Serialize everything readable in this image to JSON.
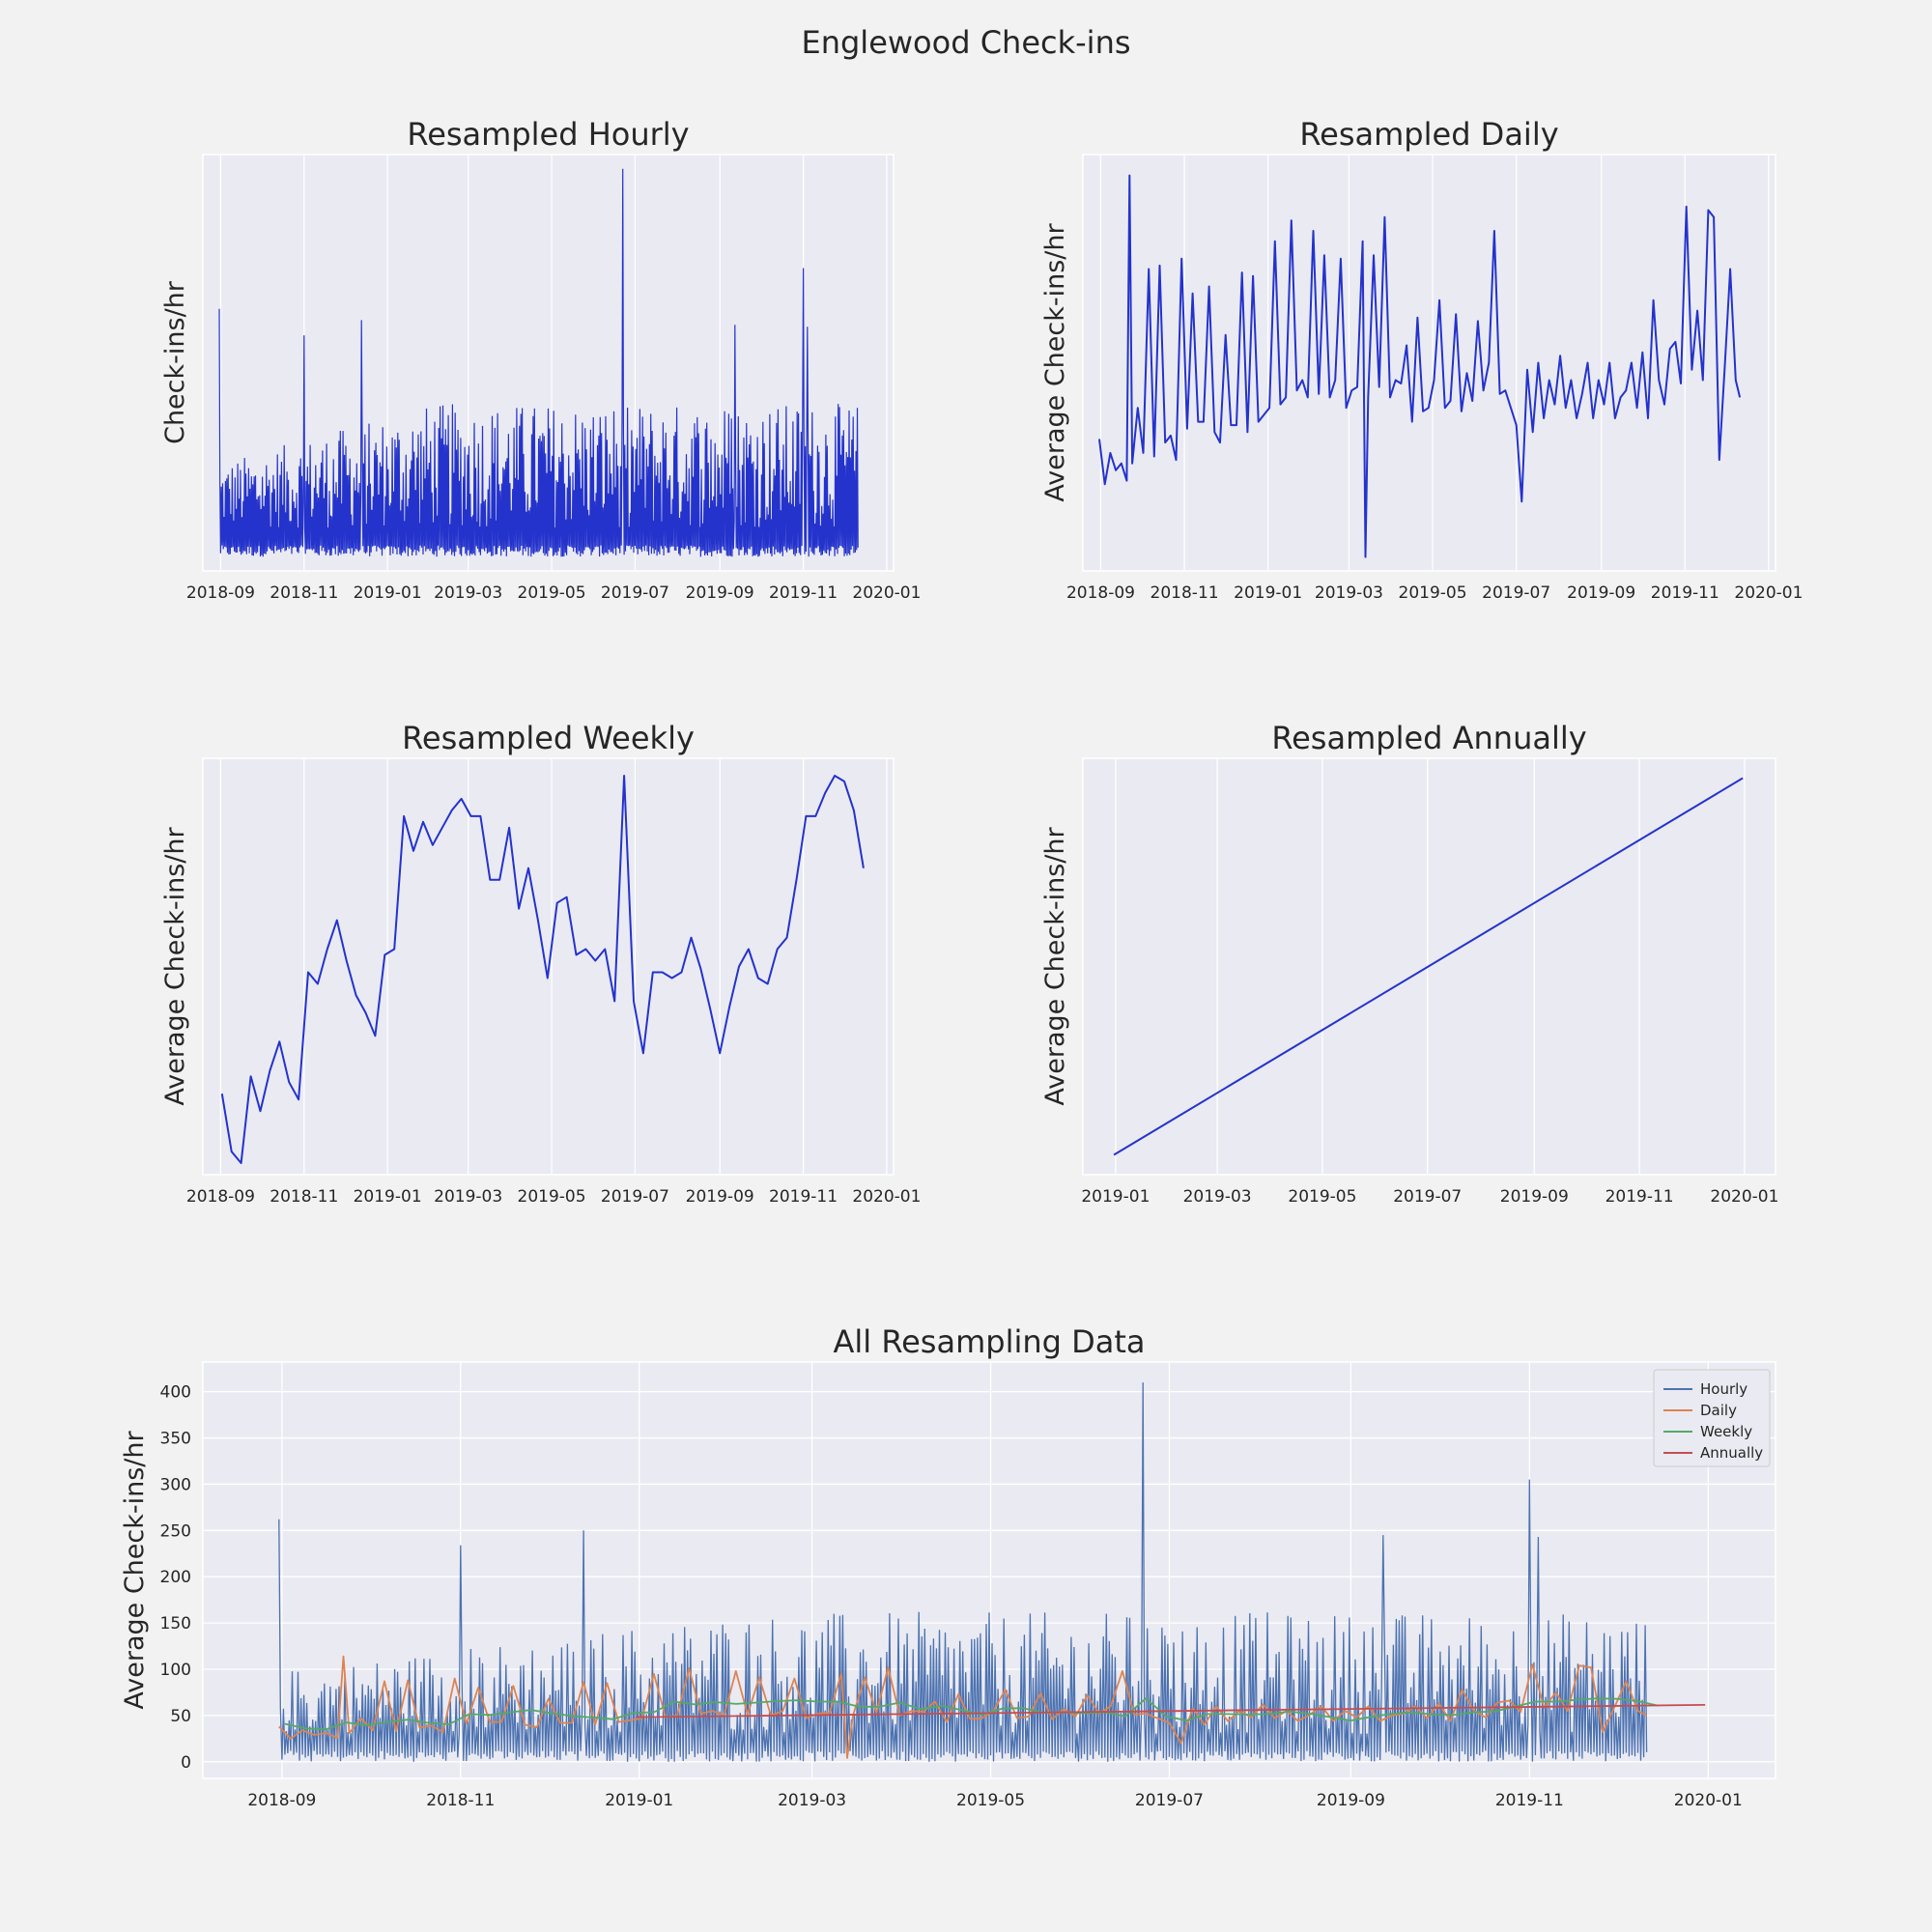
{
  "figure": {
    "suptitle": "Englewood Check-ins",
    "background": "#f2f2f2",
    "axes_face": "#eaeaf2",
    "grid_color": "#ffffff",
    "text_color": "#262626"
  },
  "chart_data": [
    {
      "type": "line",
      "title": "Resampled Hourly",
      "xlabel": "",
      "ylabel": "Check-ins/hr",
      "x_ticks": [
        "2018-09",
        "2018-11",
        "2019-01",
        "2019-03",
        "2019-05",
        "2019-07",
        "2019-09",
        "2019-11",
        "2020-01"
      ],
      "y_ticks": [],
      "grid": true,
      "xlim": [
        "2018-08-19",
        "2020-01-06"
      ],
      "ylim": [
        -15,
        425
      ],
      "series": [
        {
          "color": "#2433cc",
          "x_start": "2018-08-31",
          "x_end": "2019-12-11",
          "frequency": "hourly",
          "baseline": 0,
          "typical_range": [
            0,
            180
          ],
          "peaks": [
            {
              "x": "2018-08-31",
              "y": 262
            },
            {
              "x": "2018-11-01",
              "y": 234
            },
            {
              "x": "2018-12-13",
              "y": 250
            },
            {
              "x": "2019-06-22",
              "y": 410
            },
            {
              "x": "2019-09-12",
              "y": 245
            },
            {
              "x": "2019-11-01",
              "y": 305
            },
            {
              "x": "2019-11-04",
              "y": 243
            }
          ]
        }
      ]
    },
    {
      "type": "line",
      "title": "Resampled Daily",
      "xlabel": "",
      "ylabel": "Average Check-ins/hr",
      "x_ticks": [
        "2018-09",
        "2018-11",
        "2019-01",
        "2019-03",
        "2019-05",
        "2019-07",
        "2019-09",
        "2019-11",
        "2020-01"
      ],
      "y_ticks": [],
      "grid": true,
      "xlim": [
        "2018-08-19",
        "2020-01-06"
      ],
      "ylim": [
        0,
        120
      ],
      "series": [
        {
          "color": "#2433cc",
          "x": [
            "2018-08-31",
            "2018-09-04",
            "2018-09-08",
            "2018-09-12",
            "2018-09-16",
            "2018-09-20",
            "2018-09-22",
            "2018-09-24",
            "2018-09-28",
            "2018-10-02",
            "2018-10-06",
            "2018-10-10",
            "2018-10-14",
            "2018-10-18",
            "2018-10-22",
            "2018-10-26",
            "2018-10-30",
            "2018-11-03",
            "2018-11-07",
            "2018-11-11",
            "2018-11-15",
            "2018-11-19",
            "2018-11-23",
            "2018-11-27",
            "2018-12-01",
            "2018-12-05",
            "2018-12-09",
            "2018-12-13",
            "2018-12-17",
            "2018-12-21",
            "2018-12-25",
            "2018-12-29",
            "2019-01-02",
            "2019-01-06",
            "2019-01-10",
            "2019-01-14",
            "2019-01-18",
            "2019-01-22",
            "2019-01-26",
            "2019-01-30",
            "2019-02-03",
            "2019-02-07",
            "2019-02-11",
            "2019-02-15",
            "2019-02-19",
            "2019-02-23",
            "2019-02-27",
            "2019-03-03",
            "2019-03-07",
            "2019-03-11",
            "2019-03-13",
            "2019-03-15",
            "2019-03-19",
            "2019-03-23",
            "2019-03-27",
            "2019-03-31",
            "2019-04-04",
            "2019-04-08",
            "2019-04-12",
            "2019-04-16",
            "2019-04-20",
            "2019-04-24",
            "2019-04-28",
            "2019-05-02",
            "2019-05-06",
            "2019-05-10",
            "2019-05-14",
            "2019-05-18",
            "2019-05-22",
            "2019-05-26",
            "2019-05-30",
            "2019-06-03",
            "2019-06-07",
            "2019-06-11",
            "2019-06-15",
            "2019-06-19",
            "2019-06-23",
            "2019-06-27",
            "2019-07-01",
            "2019-07-05",
            "2019-07-09",
            "2019-07-13",
            "2019-07-17",
            "2019-07-21",
            "2019-07-25",
            "2019-07-29",
            "2019-08-02",
            "2019-08-06",
            "2019-08-10",
            "2019-08-14",
            "2019-08-18",
            "2019-08-22",
            "2019-08-26",
            "2019-08-30",
            "2019-09-03",
            "2019-09-07",
            "2019-09-11",
            "2019-09-15",
            "2019-09-19",
            "2019-09-23",
            "2019-09-27",
            "2019-10-01",
            "2019-10-05",
            "2019-10-09",
            "2019-10-13",
            "2019-10-17",
            "2019-10-21",
            "2019-10-25",
            "2019-10-29",
            "2019-11-02",
            "2019-11-06",
            "2019-11-10",
            "2019-11-14",
            "2019-11-18",
            "2019-11-22",
            "2019-11-26",
            "2019-11-30",
            "2019-12-04",
            "2019-12-08",
            "2019-12-11"
          ],
          "values": [
            38,
            25,
            34,
            29,
            31,
            26,
            114,
            31,
            47,
            34,
            87,
            33,
            88,
            37,
            39,
            32,
            90,
            41,
            80,
            43,
            43,
            82,
            40,
            37,
            68,
            42,
            42,
            86,
            40,
            85,
            43,
            45,
            47,
            95,
            48,
            50,
            101,
            52,
            55,
            50,
            98,
            51,
            91,
            50,
            55,
            90,
            47,
            52,
            53,
            95,
            4,
            50,
            91,
            53,
            102,
            50,
            55,
            54,
            65,
            43,
            73,
            46,
            47,
            55,
            78,
            47,
            49,
            74,
            46,
            57,
            49,
            72,
            52,
            60,
            98,
            51,
            52,
            47,
            42,
            20,
            58,
            40,
            60,
            44,
            55,
            48,
            62,
            47,
            55,
            44,
            51,
            60,
            44,
            55,
            48,
            60,
            44,
            50,
            52,
            60,
            47,
            63,
            44,
            78,
            55,
            48,
            64,
            66,
            54,
            105,
            58,
            75,
            55,
            104,
            102,
            32,
            59,
            87,
            55,
            50
          ]
        }
      ]
    },
    {
      "type": "line",
      "title": "Resampled Weekly",
      "xlabel": "",
      "ylabel": "Average Check-ins/hr",
      "x_ticks": [
        "2018-09",
        "2018-11",
        "2019-01",
        "2019-03",
        "2019-05",
        "2019-07",
        "2019-09",
        "2019-11",
        "2020-01"
      ],
      "y_ticks": [],
      "grid": true,
      "xlim": [
        "2018-08-19",
        "2020-01-06"
      ],
      "ylim": [
        34,
        70
      ],
      "series": [
        {
          "color": "#2433cc",
          "x": [
            "2018-09-02",
            "2018-09-09",
            "2018-09-16",
            "2018-09-23",
            "2018-09-30",
            "2018-10-07",
            "2018-10-14",
            "2018-10-21",
            "2018-10-28",
            "2018-11-04",
            "2018-11-11",
            "2018-11-18",
            "2018-11-25",
            "2018-12-02",
            "2018-12-09",
            "2018-12-16",
            "2018-12-23",
            "2018-12-30",
            "2019-01-06",
            "2019-01-13",
            "2019-01-20",
            "2019-01-27",
            "2019-02-03",
            "2019-02-10",
            "2019-02-17",
            "2019-02-24",
            "2019-03-03",
            "2019-03-10",
            "2019-03-17",
            "2019-03-24",
            "2019-03-31",
            "2019-04-07",
            "2019-04-14",
            "2019-04-21",
            "2019-04-28",
            "2019-05-05",
            "2019-05-12",
            "2019-05-19",
            "2019-05-26",
            "2019-06-02",
            "2019-06-09",
            "2019-06-16",
            "2019-06-23",
            "2019-06-30",
            "2019-07-07",
            "2019-07-14",
            "2019-07-21",
            "2019-07-28",
            "2019-08-04",
            "2019-08-11",
            "2019-08-18",
            "2019-08-25",
            "2019-09-01",
            "2019-09-08",
            "2019-09-15",
            "2019-09-22",
            "2019-09-29",
            "2019-10-06",
            "2019-10-13",
            "2019-10-20",
            "2019-10-27",
            "2019-11-03",
            "2019-11-10",
            "2019-11-17",
            "2019-11-24",
            "2019-12-01",
            "2019-12-08",
            "2019-12-15"
          ],
          "values": [
            41.0,
            36.0,
            35.0,
            42.5,
            39.5,
            43.0,
            45.5,
            42.0,
            40.5,
            51.5,
            50.5,
            53.5,
            56.0,
            52.5,
            49.5,
            48.0,
            46.0,
            53.0,
            53.5,
            65.0,
            62.0,
            64.5,
            62.5,
            64.0,
            65.5,
            66.5,
            65.0,
            65.0,
            59.5,
            59.5,
            64.0,
            57.0,
            60.5,
            56.0,
            51.0,
            57.5,
            58.0,
            53.0,
            53.5,
            52.5,
            53.5,
            49.0,
            68.5,
            49.0,
            44.5,
            51.5,
            51.5,
            51.0,
            51.5,
            54.5,
            51.8,
            48.3,
            44.5,
            48.5,
            52.0,
            53.5,
            51.0,
            50.5,
            53.5,
            54.5,
            59.5,
            65.0,
            65.0,
            67.0,
            68.5,
            68.0,
            65.5,
            60.5
          ]
        }
      ]
    },
    {
      "type": "line",
      "title": "Resampled Annually",
      "xlabel": "",
      "ylabel": "Average Check-ins/hr",
      "x_ticks": [
        "2019-01",
        "2019-03",
        "2019-05",
        "2019-07",
        "2019-09",
        "2019-11",
        "2020-01"
      ],
      "y_ticks": [],
      "grid": true,
      "xlim": [
        "2018-12-13",
        "2020-01-19"
      ],
      "ylim": [
        47.5,
        62.2
      ],
      "series": [
        {
          "color": "#2433cc",
          "x": [
            "2018-12-31",
            "2019-12-31"
          ],
          "values": [
            48.2,
            61.5
          ]
        }
      ]
    },
    {
      "type": "line",
      "title": "All Resampling Data",
      "xlabel": "",
      "ylabel": "Average Check-ins/hr",
      "x_ticks": [
        "2018-09",
        "2018-11",
        "2019-01",
        "2019-03",
        "2019-05",
        "2019-07",
        "2019-09",
        "2019-11",
        "2020-01"
      ],
      "y_ticks": [
        "0",
        "50",
        "100",
        "150",
        "200",
        "250",
        "300",
        "350",
        "400"
      ],
      "grid": true,
      "legend_position": "top-right",
      "xlim": [
        "2018-08-05",
        "2020-01-24"
      ],
      "ylim": [
        -18,
        432
      ],
      "series": [
        {
          "name": "Hourly",
          "color": "#4c72b0",
          "source": "Resampled Hourly"
        },
        {
          "name": "Daily",
          "color": "#dd8452",
          "source": "Resampled Daily"
        },
        {
          "name": "Weekly",
          "color": "#55a868",
          "source": "Resampled Weekly"
        },
        {
          "name": "Annually",
          "color": "#c44e52",
          "source": "Resampled Annually"
        }
      ]
    }
  ]
}
